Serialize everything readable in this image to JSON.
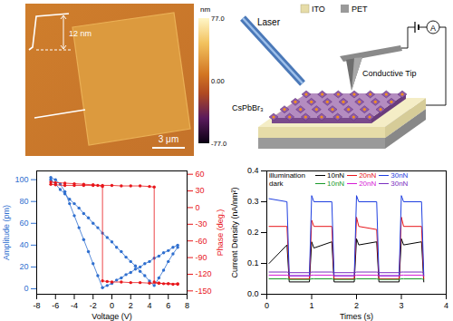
{
  "afm_image": {
    "colorbar": {
      "unit": "nm",
      "ticks": [
        {
          "value": 77,
          "label": "77.0"
        },
        {
          "value": 0,
          "label": "0.00"
        },
        {
          "value": -77,
          "label": "-77.0"
        }
      ]
    },
    "profile_step": "12 nm",
    "scale_bar": "3 μm"
  },
  "schematic": {
    "labels": {
      "laser": "Laser",
      "ito": "ITO",
      "pet": "PET",
      "tip": "Conductive Tip",
      "sample": "CsPbBr₃",
      "meter": "A"
    }
  },
  "chart_data": [
    {
      "type": "scatter",
      "xlabel": "Voltage (V)",
      "ylabel": "Amplitude (pm)",
      "y2label": "Phase (deg.)",
      "xlim": [
        -8,
        8
      ],
      "xticks": [
        -8,
        -6,
        -4,
        -2,
        0,
        2,
        4,
        6,
        8
      ],
      "ylim": [
        -5,
        108
      ],
      "yticks": [
        0,
        20,
        40,
        60,
        80,
        100
      ],
      "y2lim": [
        -156,
        66
      ],
      "y2ticks": [
        -150,
        -120,
        -90,
        -60,
        -30,
        0,
        30,
        60
      ],
      "series": [
        {
          "axis": "y",
          "color": "#2f6fcf",
          "marker": "circle",
          "line_style": "solid",
          "x": [
            -6.5,
            -6,
            -5.5,
            -5,
            -4.5,
            -4,
            -3.5,
            -3,
            -2.5,
            -2,
            -1.5,
            -1,
            -0.5,
            0,
            0.5,
            1,
            1.5,
            2,
            2.5,
            3,
            3.5,
            4,
            4.5,
            5,
            5.5,
            6,
            6.5,
            7,
            7,
            6.5,
            6,
            5.5,
            5,
            4.5,
            4,
            3.5,
            3,
            2.5,
            2,
            1.5,
            1,
            0.5,
            0,
            -0.5,
            -1,
            -1.5,
            -2,
            -2.5,
            -3,
            -3.5,
            -4,
            -4.5,
            -5,
            -5.5,
            -6,
            -6.5
          ],
          "values": [
            100,
            96,
            91,
            87,
            82,
            78,
            74,
            69,
            65,
            60,
            56,
            51,
            47,
            43,
            38,
            34,
            29,
            25,
            21,
            16,
            12,
            7,
            3,
            10,
            17,
            25,
            32,
            38,
            40,
            38,
            35,
            33,
            30,
            28,
            25,
            23,
            20,
            18,
            15,
            13,
            10,
            8,
            5,
            3,
            1,
            12,
            23,
            34,
            45,
            56,
            67,
            78,
            89,
            96,
            100,
            102
          ]
        },
        {
          "axis": "y2",
          "color": "#e8161b",
          "marker": "circle",
          "line_style": "solid",
          "x": [
            -6.5,
            -6,
            -5,
            -4,
            -3,
            -2,
            -1,
            0,
            1,
            2,
            3,
            4,
            4.5,
            4.5,
            5,
            5.5,
            6,
            6.5,
            7,
            7,
            6,
            5,
            4,
            3,
            2,
            1,
            0,
            -0.5,
            -1,
            -1,
            -1.5,
            -2,
            -3,
            -4,
            -5,
            -6,
            -6.5
          ],
          "values": [
            42,
            41,
            40,
            40,
            40,
            40,
            40,
            40,
            39,
            39,
            39,
            38,
            37,
            -134,
            -136,
            -137,
            -137,
            -138,
            -138,
            -137,
            -137,
            -136,
            -136,
            -135,
            -135,
            -134,
            -134,
            -133,
            -132,
            38,
            40,
            41,
            42,
            43,
            44,
            45,
            46
          ]
        }
      ]
    },
    {
      "type": "line",
      "xlabel": "Times (s)",
      "ylabel": "Current Density (nA/nm²)",
      "xlim": [
        0,
        4
      ],
      "xticks": [
        0,
        1,
        2,
        3,
        4
      ],
      "ylim": [
        0,
        0.4
      ],
      "yticks": [
        {
          "value": 0,
          "label": "0.0"
        },
        {
          "value": 0.1,
          "label": "0.1"
        },
        {
          "value": 0.2,
          "label": "0.2"
        },
        {
          "value": 0.3,
          "label": "0.3"
        },
        {
          "value": 0.4,
          "label": "0.4"
        }
      ],
      "legend": "top",
      "x": [
        0.05,
        0.45,
        0.5,
        0.95,
        1.0,
        1.05,
        1.45,
        1.5,
        1.95,
        2.0,
        2.05,
        2.45,
        2.5,
        2.95,
        3.0,
        3.05,
        3.45,
        3.5
      ],
      "series": [
        {
          "name": "10nN",
          "group": "illumination",
          "color": "#000000",
          "values": [
            0.1,
            0.16,
            0.04,
            0.04,
            0.17,
            0.15,
            0.17,
            0.04,
            0.04,
            0.18,
            0.16,
            0.17,
            0.04,
            0.04,
            0.18,
            0.16,
            0.17,
            0.04
          ]
        },
        {
          "name": "20nN",
          "group": "illumination",
          "color": "#e8161b",
          "values": [
            0.22,
            0.22,
            0.05,
            0.05,
            0.24,
            0.22,
            0.22,
            0.05,
            0.05,
            0.25,
            0.22,
            0.21,
            0.05,
            0.05,
            0.25,
            0.22,
            0.22,
            0.05
          ]
        },
        {
          "name": "30nN",
          "group": "illumination",
          "color": "#1f3fe0",
          "values": [
            0.31,
            0.3,
            0.06,
            0.06,
            0.32,
            0.3,
            0.3,
            0.06,
            0.06,
            0.32,
            0.3,
            0.3,
            0.06,
            0.06,
            0.32,
            0.3,
            0.3,
            0.06
          ]
        },
        {
          "name": "10nN",
          "group": "dark",
          "color": "#1a9a2a",
          "values": [
            0.05,
            0.05,
            0.048,
            0.048,
            0.05,
            0.05,
            0.05,
            0.048,
            0.048,
            0.05,
            0.05,
            0.05,
            0.048,
            0.048,
            0.05,
            0.05,
            0.05,
            0.048
          ]
        },
        {
          "name": "20nN",
          "group": "dark",
          "color": "#d61ad6",
          "values": [
            0.062,
            0.062,
            0.06,
            0.06,
            0.062,
            0.062,
            0.062,
            0.06,
            0.06,
            0.062,
            0.062,
            0.062,
            0.06,
            0.06,
            0.062,
            0.062,
            0.062,
            0.06
          ]
        },
        {
          "name": "30nN",
          "group": "dark",
          "color": "#7a2fc0",
          "values": [
            0.072,
            0.072,
            0.07,
            0.07,
            0.072,
            0.072,
            0.072,
            0.07,
            0.07,
            0.072,
            0.072,
            0.072,
            0.07,
            0.07,
            0.072,
            0.072,
            0.072,
            0.07
          ]
        }
      ]
    }
  ]
}
